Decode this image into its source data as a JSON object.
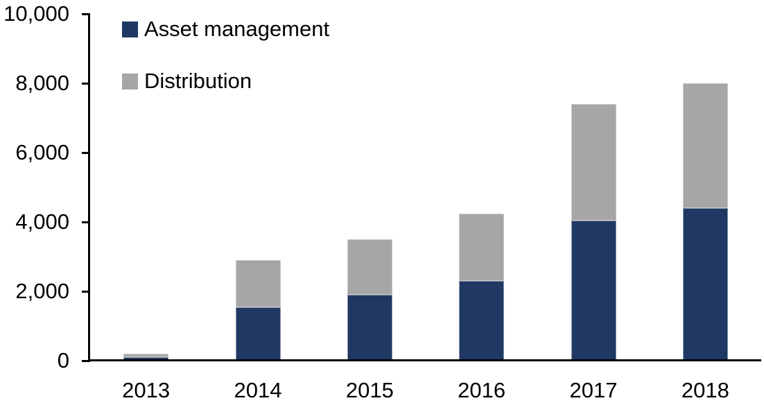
{
  "chart_data": {
    "type": "bar",
    "stacked": true,
    "title": "",
    "xlabel": "",
    "ylabel": "",
    "categories": [
      "2013",
      "2014",
      "2015",
      "2016",
      "2017",
      "2018"
    ],
    "series": [
      {
        "name": "Asset management",
        "color": "#1F3864",
        "values": [
          100,
          1550,
          1900,
          2300,
          4050,
          4400
        ]
      },
      {
        "name": "Distribution",
        "color": "#A6A6A6",
        "values": [
          110,
          1350,
          1600,
          1950,
          3350,
          3600
        ]
      }
    ],
    "stacked_totals": [
      210,
      2900,
      3500,
      4250,
      7400,
      8000
    ],
    "ylim": [
      0,
      10000
    ],
    "y_ticks": [
      "0",
      "2,000",
      "4,000",
      "6,000",
      "8,000",
      "10,000"
    ],
    "y_tick_values": [
      0,
      2000,
      4000,
      6000,
      8000,
      10000
    ],
    "grid": false,
    "legend_position": "top-left",
    "axis_color": "#000000",
    "background_color": "#FFFFFF"
  }
}
